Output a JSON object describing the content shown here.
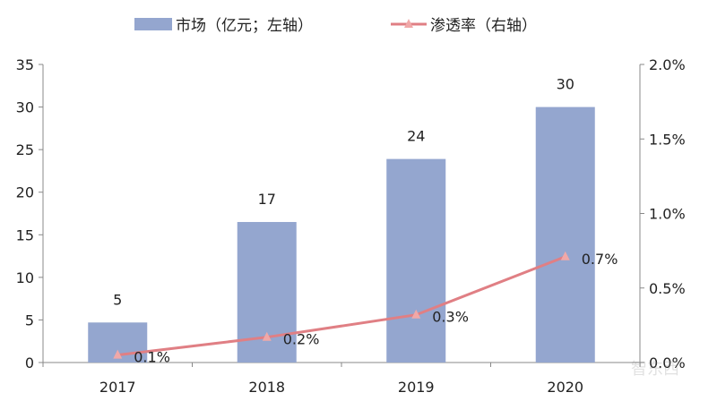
{
  "chart_data": {
    "type": "bar+line",
    "categories": [
      "2017",
      "2018",
      "2019",
      "2020"
    ],
    "series": [
      {
        "name": "市场（亿元；左轴）",
        "type": "bar",
        "axis": "left",
        "values": [
          4.7,
          16.5,
          23.9,
          30
        ],
        "labels": [
          "5",
          "17",
          "24",
          "30"
        ],
        "color": "#94a6cf"
      },
      {
        "name": "渗透率（右轴）",
        "type": "line",
        "axis": "right",
        "values": [
          0.05,
          0.17,
          0.32,
          0.71
        ],
        "labels": [
          "0.1%",
          "0.2%",
          "0.3%",
          "0.7%"
        ],
        "color": "#e07f84",
        "marker": "triangle"
      }
    ],
    "y_left": {
      "range": [
        0,
        35
      ],
      "ticks": [
        "0",
        "5",
        "10",
        "15",
        "20",
        "25",
        "30",
        "35"
      ]
    },
    "y_right": {
      "range": [
        0,
        2.0
      ],
      "ticks": [
        "0.0%",
        "0.5%",
        "1.0%",
        "1.5%",
        "2.0%"
      ]
    },
    "grid": false,
    "legend": "top"
  },
  "watermark": "智东西 zhidx.com"
}
